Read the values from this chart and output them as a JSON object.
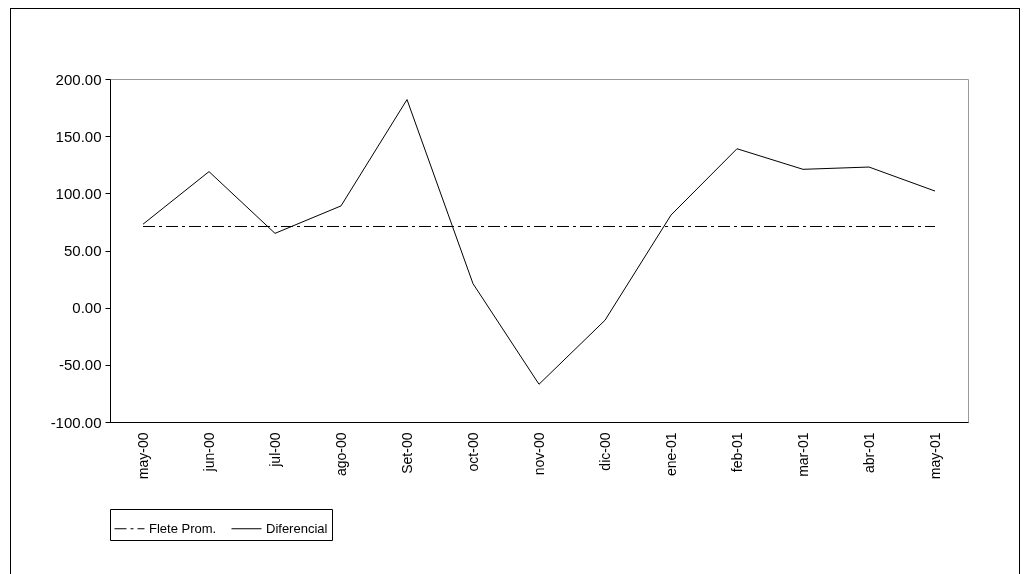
{
  "chart_data": {
    "type": "line",
    "categories": [
      "may-00",
      "jun-00",
      "jul-00",
      "ago-00",
      "Set-00",
      "oct-00",
      "nov-00",
      "dic-00",
      "ene-01",
      "feb-01",
      "mar-01",
      "abr-01",
      "may-01"
    ],
    "series": [
      {
        "name": "Flete Prom.",
        "color": "#000000",
        "line_style": "dashed",
        "values": [
          71,
          71,
          71,
          71,
          71,
          71,
          71,
          71,
          71,
          71,
          71,
          71,
          71
        ]
      },
      {
        "name": "Diferencial",
        "color": "#000000",
        "line_style": "solid",
        "values": [
          73,
          119,
          65,
          89,
          182,
          21,
          -67,
          -11,
          81,
          139,
          121,
          123,
          102
        ]
      }
    ],
    "ylim": [
      -100,
      200
    ],
    "yticks": [
      {
        "value": -100,
        "label": "-100.00"
      },
      {
        "value": -50,
        "label": "-50.00"
      },
      {
        "value": 0,
        "label": "0.00"
      },
      {
        "value": 50,
        "label": "50.00"
      },
      {
        "value": 100,
        "label": "100.00"
      },
      {
        "value": 150,
        "label": "150.00"
      },
      {
        "value": 200,
        "label": "200.00"
      }
    ],
    "grid": false,
    "legend": "bottom"
  }
}
